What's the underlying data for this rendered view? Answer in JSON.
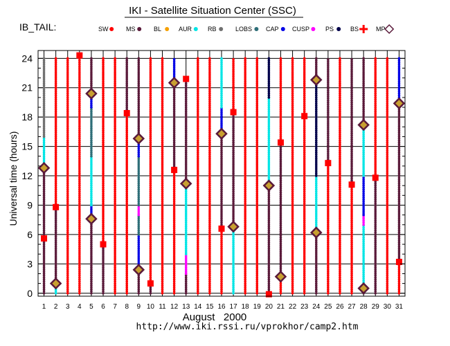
{
  "title": "IKI - Satellite Situation Center (SSC)",
  "subtitle": "IB_TAIL:",
  "legend": [
    {
      "label": "SW",
      "color": "#ff0000",
      "shape": "dot"
    },
    {
      "label": "MS",
      "color": "#5a1a3a",
      "shape": "dot"
    },
    {
      "label": "BL",
      "color": "#f5a000",
      "shape": "dot"
    },
    {
      "label": "AUR",
      "color": "#00e5e5",
      "shape": "dot"
    },
    {
      "label": "RB",
      "color": "#707070",
      "shape": "dot"
    },
    {
      "label": "LOBS",
      "color": "#2e6e78",
      "shape": "dot"
    },
    {
      "label": "CAP",
      "color": "#0000e6",
      "shape": "dot"
    },
    {
      "label": "CUSP",
      "color": "#ff00ff",
      "shape": "dot"
    },
    {
      "label": "PS",
      "color": "#00004a",
      "shape": "dot"
    },
    {
      "label": "BS",
      "color": "#ff0000",
      "shape": "cross"
    },
    {
      "label": "MP",
      "color": "#5a1a3a",
      "shape": "diamond"
    }
  ],
  "footer_url": "http://www.iki.rssi.ru/vprokhor/camp2.htm",
  "chart_data": {
    "type": "scatter",
    "title": "IKI - Satellite Situation Center (SSC)",
    "xlabel": "August   2000",
    "ylabel": "Universal time  (hours)",
    "x_ticks": [
      1,
      2,
      3,
      4,
      5,
      6,
      7,
      8,
      9,
      10,
      11,
      12,
      13,
      14,
      15,
      16,
      17,
      18,
      19,
      20,
      21,
      22,
      23,
      24,
      25,
      26,
      27,
      28,
      29,
      30,
      31
    ],
    "y_ticks": [
      0,
      3,
      6,
      9,
      12,
      15,
      18,
      21,
      24
    ],
    "xlim": [
      0.5,
      31.5
    ],
    "ylim": [
      -0.3,
      24.8
    ],
    "grid": true,
    "days": [
      {
        "day": 1,
        "segments": [
          {
            "from": 0,
            "to": 5.6,
            "region": "MS"
          },
          {
            "from": 5.6,
            "to": 12.8,
            "region": "MS"
          },
          {
            "from": 12.8,
            "to": 16,
            "region": "AUR"
          },
          {
            "from": 16,
            "to": 24,
            "region": "RB"
          }
        ],
        "crossings": [
          {
            "t": 5.6,
            "type": "BS"
          },
          {
            "t": 12.8,
            "type": "MP"
          }
        ]
      },
      {
        "day": 2,
        "segments": [
          {
            "from": 0,
            "to": 1,
            "region": "AUR"
          },
          {
            "from": 1,
            "to": 8.8,
            "region": "MS"
          },
          {
            "from": 8.8,
            "to": 24,
            "region": "SW"
          }
        ],
        "crossings": [
          {
            "t": 1,
            "type": "MP"
          },
          {
            "t": 8.8,
            "type": "BS"
          }
        ]
      },
      {
        "day": 3,
        "segments": [
          {
            "from": 0,
            "to": 24,
            "region": "SW"
          }
        ],
        "crossings": []
      },
      {
        "day": 4,
        "segments": [
          {
            "from": 0,
            "to": 24,
            "region": "SW"
          }
        ],
        "crossings": [
          {
            "t": 24.3,
            "type": "BS"
          }
        ]
      },
      {
        "day": 5,
        "segments": [
          {
            "from": 0,
            "to": 7.6,
            "region": "MS"
          },
          {
            "from": 7.6,
            "to": 9,
            "region": "CAP"
          },
          {
            "from": 9,
            "to": 14,
            "region": "AUR"
          },
          {
            "from": 14,
            "to": 19,
            "region": "LOBS"
          },
          {
            "from": 19,
            "to": 20.4,
            "region": "CAP"
          },
          {
            "from": 20.4,
            "to": 24,
            "region": "MS"
          }
        ],
        "crossings": [
          {
            "t": 7.6,
            "type": "MP"
          },
          {
            "t": 20.4,
            "type": "MP"
          }
        ]
      },
      {
        "day": 6,
        "segments": [
          {
            "from": 0,
            "to": 5,
            "region": "MS"
          },
          {
            "from": 5,
            "to": 24,
            "region": "SW"
          }
        ],
        "crossings": [
          {
            "t": 5,
            "type": "BS"
          }
        ]
      },
      {
        "day": 7,
        "segments": [
          {
            "from": 0,
            "to": 24,
            "region": "SW"
          }
        ],
        "crossings": []
      },
      {
        "day": 8,
        "segments": [
          {
            "from": 0,
            "to": 18.4,
            "region": "SW"
          },
          {
            "from": 18.4,
            "to": 24,
            "region": "MS"
          }
        ],
        "crossings": [
          {
            "t": 18.4,
            "type": "BS"
          }
        ]
      },
      {
        "day": 9,
        "segments": [
          {
            "from": 0,
            "to": 2.4,
            "region": "MS"
          },
          {
            "from": 2.4,
            "to": 6,
            "region": "CAP"
          },
          {
            "from": 6,
            "to": 8,
            "region": "LOBS"
          },
          {
            "from": 8,
            "to": 9,
            "region": "CUSP"
          },
          {
            "from": 9,
            "to": 14,
            "region": "LOBS"
          },
          {
            "from": 14,
            "to": 15.8,
            "region": "CAP"
          },
          {
            "from": 15.8,
            "to": 24,
            "region": "MS"
          }
        ],
        "crossings": [
          {
            "t": 2.4,
            "type": "MP"
          },
          {
            "t": 15.8,
            "type": "MP"
          }
        ]
      },
      {
        "day": 10,
        "segments": [
          {
            "from": 0,
            "to": 1,
            "region": "MS"
          },
          {
            "from": 1,
            "to": 24,
            "region": "SW"
          }
        ],
        "crossings": [
          {
            "t": 1,
            "type": "BS"
          }
        ]
      },
      {
        "day": 11,
        "segments": [
          {
            "from": 0,
            "to": 24,
            "region": "SW"
          }
        ],
        "crossings": []
      },
      {
        "day": 12,
        "segments": [
          {
            "from": 0,
            "to": 12.6,
            "region": "SW"
          },
          {
            "from": 12.6,
            "to": 21.5,
            "region": "MS"
          },
          {
            "from": 21.5,
            "to": 24,
            "region": "CAP"
          }
        ],
        "crossings": [
          {
            "t": 12.6,
            "type": "BS"
          },
          {
            "t": 21.5,
            "type": "MP"
          }
        ]
      },
      {
        "day": 13,
        "segments": [
          {
            "from": 0,
            "to": 2,
            "region": "MS"
          },
          {
            "from": 2,
            "to": 4,
            "region": "CUSP"
          },
          {
            "from": 4,
            "to": 11.2,
            "region": "AUR"
          },
          {
            "from": 11.2,
            "to": 21.9,
            "region": "MS"
          }
        ],
        "crossings": [
          {
            "t": 11.2,
            "type": "MP"
          },
          {
            "t": 21.9,
            "type": "BS"
          }
        ]
      },
      {
        "day": 14,
        "segments": [
          {
            "from": 0,
            "to": 24,
            "region": "SW"
          }
        ],
        "crossings": []
      },
      {
        "day": 15,
        "segments": [
          {
            "from": 0,
            "to": 24,
            "region": "SW"
          }
        ],
        "crossings": []
      },
      {
        "day": 16,
        "segments": [
          {
            "from": 0,
            "to": 6.6,
            "region": "SW"
          },
          {
            "from": 6.6,
            "to": 16.3,
            "region": "MS"
          },
          {
            "from": 16.3,
            "to": 19,
            "region": "CAP"
          },
          {
            "from": 19,
            "to": 24,
            "region": "AUR"
          }
        ],
        "crossings": [
          {
            "t": 6.6,
            "type": "BS"
          },
          {
            "t": 16.3,
            "type": "MP"
          }
        ]
      },
      {
        "day": 17,
        "segments": [
          {
            "from": 0,
            "to": 6.8,
            "region": "AUR"
          },
          {
            "from": 6.8,
            "to": 18.5,
            "region": "MS"
          },
          {
            "from": 18.5,
            "to": 24,
            "region": "SW"
          }
        ],
        "crossings": [
          {
            "t": 6.8,
            "type": "MP"
          },
          {
            "t": 18.5,
            "type": "BS"
          }
        ]
      },
      {
        "day": 18,
        "segments": [
          {
            "from": 0,
            "to": 24,
            "region": "SW"
          }
        ],
        "crossings": []
      },
      {
        "day": 19,
        "segments": [
          {
            "from": 0,
            "to": 24,
            "region": "SW"
          }
        ],
        "crossings": []
      },
      {
        "day": 20,
        "segments": [
          {
            "from": 0,
            "to": 11,
            "region": "MS"
          },
          {
            "from": 11,
            "to": 20,
            "region": "AUR"
          },
          {
            "from": 20,
            "to": 24,
            "region": "PS"
          }
        ],
        "crossings": [
          {
            "t": -0.1,
            "type": "BS"
          },
          {
            "t": 11,
            "type": "MP"
          }
        ]
      },
      {
        "day": 21,
        "segments": [
          {
            "from": 0,
            "to": 1.7,
            "region": "SW"
          },
          {
            "from": 1.7,
            "to": 15.4,
            "region": "MS"
          },
          {
            "from": 15.4,
            "to": 24,
            "region": "SW"
          }
        ],
        "crossings": [
          {
            "t": 1.7,
            "type": "MP"
          },
          {
            "t": 15.4,
            "type": "BS"
          }
        ]
      },
      {
        "day": 22,
        "segments": [
          {
            "from": 0,
            "to": 24,
            "region": "SW"
          }
        ],
        "crossings": []
      },
      {
        "day": 23,
        "segments": [
          {
            "from": 0,
            "to": 24,
            "region": "SW"
          }
        ],
        "crossings": [
          {
            "t": 18.1,
            "type": "BS"
          }
        ]
      },
      {
        "day": 24,
        "segments": [
          {
            "from": 0,
            "to": 6.2,
            "region": "MS"
          },
          {
            "from": 6.2,
            "to": 12,
            "region": "AUR"
          },
          {
            "from": 12,
            "to": 21.8,
            "region": "PS"
          },
          {
            "from": 21.8,
            "to": 24,
            "region": "MS"
          }
        ],
        "crossings": [
          {
            "t": 6.2,
            "type": "MP"
          },
          {
            "t": 21.8,
            "type": "MP"
          }
        ]
      },
      {
        "day": 25,
        "segments": [
          {
            "from": 0,
            "to": 13.3,
            "region": "SW"
          },
          {
            "from": 13.3,
            "to": 24,
            "region": "MS"
          }
        ],
        "crossings": [
          {
            "t": 13.3,
            "type": "BS"
          }
        ]
      },
      {
        "day": 26,
        "segments": [
          {
            "from": 0,
            "to": 24,
            "region": "SW"
          }
        ],
        "crossings": []
      },
      {
        "day": 27,
        "segments": [
          {
            "from": 0,
            "to": 11.1,
            "region": "SW"
          },
          {
            "from": 11.1,
            "to": 24,
            "region": "MS"
          }
        ],
        "crossings": [
          {
            "t": 11.1,
            "type": "BS"
          }
        ]
      },
      {
        "day": 28,
        "segments": [
          {
            "from": 0,
            "to": 0.5,
            "region": "MS"
          },
          {
            "from": 0.5,
            "to": 7,
            "region": "AUR"
          },
          {
            "from": 7,
            "to": 8,
            "region": "CUSP"
          },
          {
            "from": 8,
            "to": 12,
            "region": "CAP"
          },
          {
            "from": 12,
            "to": 17.2,
            "region": "AUR"
          },
          {
            "from": 17.2,
            "to": 24,
            "region": "MS"
          }
        ],
        "crossings": [
          {
            "t": 0.5,
            "type": "MP"
          },
          {
            "t": 17.2,
            "type": "MP"
          }
        ]
      },
      {
        "day": 29,
        "segments": [
          {
            "from": 0,
            "to": 11.8,
            "region": "MS"
          },
          {
            "from": 11.8,
            "to": 24,
            "region": "SW"
          }
        ],
        "crossings": [
          {
            "t": 11.8,
            "type": "BS"
          }
        ]
      },
      {
        "day": 30,
        "segments": [
          {
            "from": 0,
            "to": 24,
            "region": "SW"
          }
        ],
        "crossings": []
      },
      {
        "day": 31,
        "segments": [
          {
            "from": 0,
            "to": 3.2,
            "region": "SW"
          },
          {
            "from": 3.2,
            "to": 19.4,
            "region": "MS"
          },
          {
            "from": 19.4,
            "to": 24,
            "region": "CAP"
          }
        ],
        "crossings": [
          {
            "t": 3.2,
            "type": "BS"
          },
          {
            "t": 19.4,
            "type": "MP"
          }
        ]
      }
    ]
  }
}
